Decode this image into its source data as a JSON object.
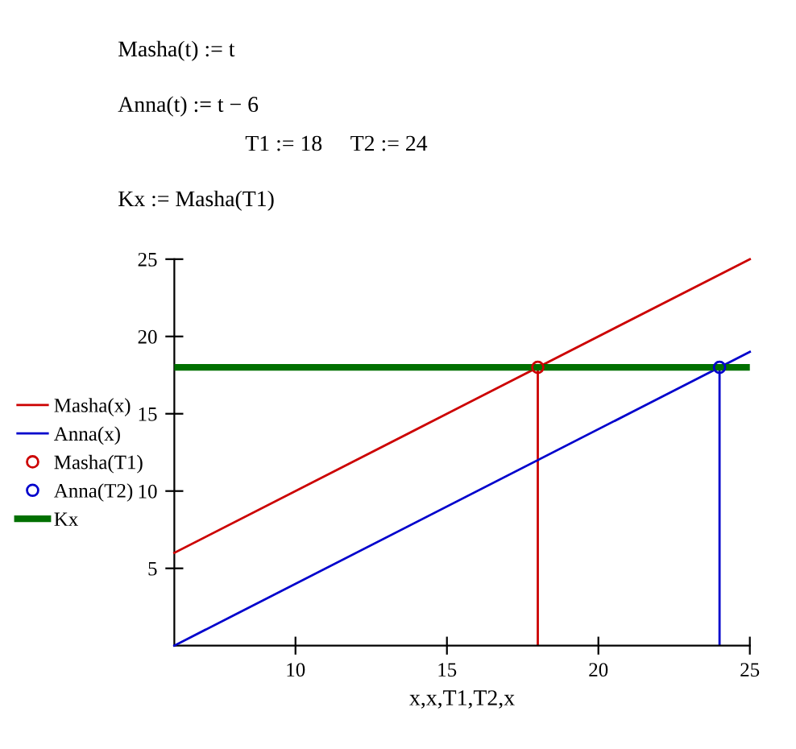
{
  "chart_data": {
    "type": "line",
    "annotations": [
      "Masha(t) := t",
      "Anna(t) := t − 6",
      "T1 := 18",
      "T2 := 24",
      "Kx := Masha(T1)"
    ],
    "xlabel": "x,x,T1,T2,x",
    "series": [
      {
        "name": "Masha(x)",
        "color": "#cc0000",
        "x": [
          6,
          25
        ],
        "values": [
          6,
          25
        ]
      },
      {
        "name": "Anna(x)",
        "color": "#0000cc",
        "x": [
          6,
          25
        ],
        "values": [
          0,
          19
        ]
      },
      {
        "name": "Masha(T1)",
        "type": "lollipop",
        "color": "#cc0000",
        "marker": "circle",
        "x": [
          18
        ],
        "values": [
          18
        ]
      },
      {
        "name": "Anna(T2)",
        "type": "lollipop",
        "color": "#0000cc",
        "marker": "circle",
        "x": [
          24
        ],
        "values": [
          18
        ]
      }
    ],
    "ref_lines": [
      {
        "axis": "y",
        "value": 18,
        "label": "Kx",
        "color": "#007000"
      }
    ],
    "xlim": [
      6,
      25
    ],
    "ylim": [
      0,
      25
    ],
    "xticks": [
      10,
      15,
      20,
      25
    ],
    "yticks": [
      5,
      10,
      15,
      20,
      25
    ],
    "grid": false,
    "legend": "left"
  }
}
